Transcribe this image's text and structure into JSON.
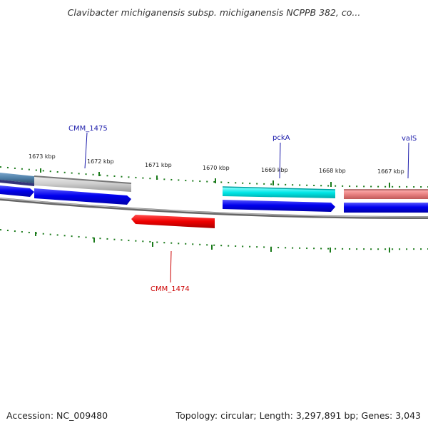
{
  "title": "Clavibacter michiganensis subsp. michiganensis NCPPB 382, co...",
  "footer": {
    "accession": "Accession: NC_009480",
    "summary": "Topology: circular; Length: 3,297,891 bp; Genes: 3,043"
  },
  "scale": {
    "tick_labels": [
      "1673 kbp",
      "1672 kbp",
      "1671 kbp",
      "1670 kbp",
      "1669 kbp",
      "1668 kbp",
      "1667 kbp"
    ]
  },
  "features": {
    "labels": [
      "CMM_1475",
      "CMM_1474",
      "pckA",
      "valS"
    ],
    "colors": {
      "cmm1475": "#0000ff",
      "cmm1474": "#cc0000",
      "pckA": "#00e0e0",
      "valS": "#e88080",
      "label_blue": "#1a1aaa",
      "label_red": "#cc0000",
      "tick_green": "#1a7a1a",
      "backbone": "#777777"
    }
  }
}
